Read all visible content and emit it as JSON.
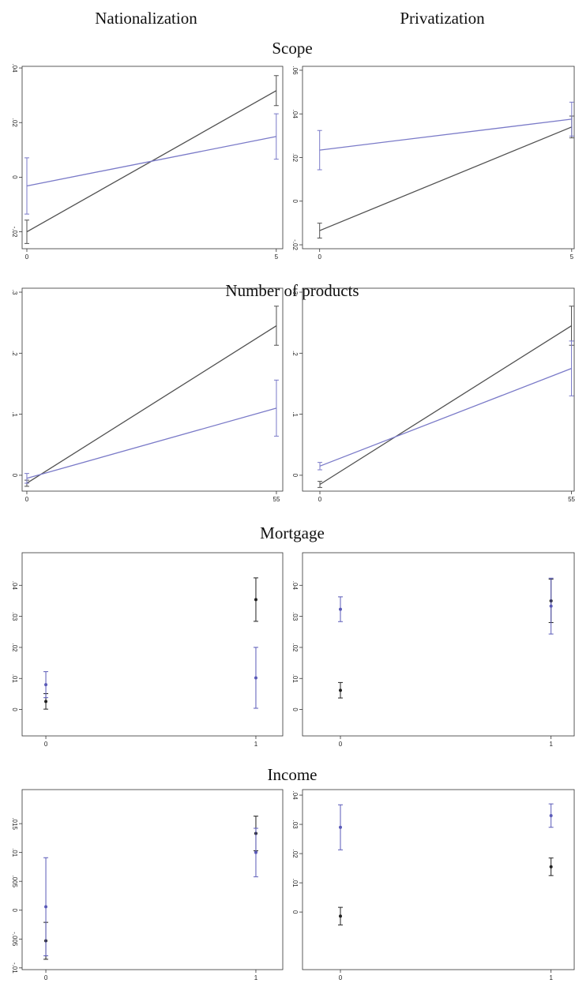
{
  "columns": [
    "Nationalization",
    "Privatization"
  ],
  "rows": [
    "Scope",
    "Number of products",
    "Mortgage",
    "Income"
  ],
  "chart_data": [
    {
      "type": "line",
      "x": [
        0,
        5
      ],
      "xlim": [
        -0.095,
        5.13
      ],
      "xticks": [
        0,
        5
      ],
      "ylim": [
        -0.0262,
        0.0406
      ],
      "yticks": [
        {
          "value": -0.02,
          "label": "-.02"
        },
        0,
        {
          "value": 0.02,
          "label": ".02"
        },
        {
          "value": 0.04,
          "label": ".04"
        }
      ],
      "series": [
        {
          "color": "#505050",
          "values": [
            -0.02,
            0.0317
          ],
          "errors": [
            0.0043,
            0.0055
          ]
        },
        {
          "color": "#7a7ac8",
          "values": [
            -0.0032,
            0.0149
          ],
          "errors": [
            0.0103,
            0.0083
          ]
        }
      ]
    },
    {
      "type": "line",
      "x": [
        0,
        5
      ],
      "xlim": [
        -0.34,
        5.05
      ],
      "xticks": [
        0,
        5
      ],
      "ylim": [
        -0.0218,
        0.0618
      ],
      "yticks": [
        {
          "value": -0.02,
          "label": "-.02"
        },
        0,
        {
          "value": 0.02,
          "label": ".02"
        },
        {
          "value": 0.04,
          "label": ".04"
        },
        {
          "value": 0.06,
          "label": ".06"
        }
      ],
      "series": [
        {
          "color": "#505050",
          "values": [
            -0.0135,
            0.034
          ],
          "errors": [
            0.0034,
            0.005
          ]
        },
        {
          "color": "#7a7ac8",
          "values": [
            0.0234,
            0.0376
          ],
          "errors": [
            0.009,
            0.0078
          ]
        }
      ]
    },
    {
      "type": "line",
      "x": [
        0,
        55
      ],
      "xlim": [
        -1.04,
        56.4
      ],
      "xticks": [
        0,
        55
      ],
      "ylim": [
        -0.026,
        0.3065
      ],
      "yticks": [
        0,
        {
          "value": 0.1,
          "label": ".1"
        },
        {
          "value": 0.2,
          "label": ".2"
        },
        {
          "value": 0.3,
          "label": ".3"
        }
      ],
      "series": [
        {
          "color": "#505050",
          "values": [
            -0.013,
            0.245
          ],
          "errors": [
            0.005,
            0.032
          ]
        },
        {
          "color": "#7a7ac8",
          "values": [
            -0.005,
            0.11
          ],
          "errors": [
            0.008,
            0.046
          ]
        }
      ]
    },
    {
      "type": "line",
      "x": [
        0,
        55
      ],
      "xlim": [
        -3.8,
        55.6
      ],
      "xticks": [
        0,
        55
      ],
      "ylim": [
        -0.026,
        0.3065
      ],
      "yticks": [
        0,
        {
          "value": 0.1,
          "label": ".1"
        },
        {
          "value": 0.2,
          "label": ".2"
        },
        {
          "value": 0.3,
          "label": ".3"
        }
      ],
      "series": [
        {
          "color": "#505050",
          "values": [
            -0.015,
            0.245
          ],
          "errors": [
            0.005,
            0.032
          ]
        },
        {
          "color": "#7a7ac8",
          "values": [
            0.015,
            0.175
          ],
          "errors": [
            0.006,
            0.045
          ]
        }
      ]
    },
    {
      "type": "scatter",
      "x": [
        0,
        1
      ],
      "xlim": [
        -0.113,
        1.128
      ],
      "xticks": [
        0,
        1
      ],
      "ylim": [
        -0.0085,
        0.0505
      ],
      "yticks": [
        0,
        {
          "value": 0.01,
          "label": ".01"
        },
        {
          "value": 0.02,
          "label": ".02"
        },
        {
          "value": 0.03,
          "label": ".03"
        },
        {
          "value": 0.04,
          "label": ".04"
        }
      ],
      "series": [
        {
          "color": "#202020",
          "values": [
            0.0026,
            0.0354
          ],
          "errors": [
            0.0025,
            0.007
          ]
        },
        {
          "color": "#5a5ab8",
          "values": [
            0.008,
            0.0102
          ],
          "errors": [
            0.0042,
            0.0098
          ]
        }
      ]
    },
    {
      "type": "scatter",
      "x": [
        0,
        1
      ],
      "xlim": [
        -0.18,
        1.11
      ],
      "xticks": [
        0,
        1
      ],
      "ylim": [
        -0.0085,
        0.0505
      ],
      "yticks": [
        0,
        {
          "value": 0.01,
          "label": ".01"
        },
        {
          "value": 0.02,
          "label": ".02"
        },
        {
          "value": 0.03,
          "label": ".03"
        },
        {
          "value": 0.04,
          "label": ".04"
        }
      ],
      "series": [
        {
          "color": "#202020",
          "values": [
            0.0062,
            0.035
          ],
          "errors": [
            0.0025,
            0.007
          ]
        },
        {
          "color": "#5a5ab8",
          "values": [
            0.0323,
            0.0333
          ],
          "errors": [
            0.004,
            0.009
          ]
        }
      ]
    },
    {
      "type": "scatter",
      "x": [
        0,
        1
      ],
      "xlim": [
        -0.113,
        1.128
      ],
      "xticks": [
        0,
        1
      ],
      "ylim": [
        -0.0103,
        0.0209
      ],
      "yticks": [
        {
          "value": -0.01,
          "label": "-.01"
        },
        {
          "value": -0.005,
          "label": "-.005"
        },
        0,
        {
          "value": 0.005,
          "label": ".005"
        },
        {
          "value": 0.01,
          "label": ".01"
        },
        {
          "value": 0.015,
          "label": ".015"
        }
      ],
      "series": [
        {
          "color": "#202020",
          "values": [
            -0.0053,
            0.0133
          ],
          "errors": [
            0.0032,
            0.003
          ]
        },
        {
          "color": "#5a5ab8",
          "values": [
            0.0006,
            0.01
          ],
          "errors": [
            0.0085,
            0.0042
          ]
        }
      ]
    },
    {
      "type": "scatter",
      "x": [
        0,
        1
      ],
      "xlim": [
        -0.18,
        1.11
      ],
      "xticks": [
        0,
        1
      ],
      "ylim": [
        -0.0197,
        0.0419
      ],
      "yticks": [
        0,
        {
          "value": 0.01,
          "label": ".01"
        },
        {
          "value": 0.02,
          "label": ".02"
        },
        {
          "value": 0.03,
          "label": ".03"
        },
        {
          "value": 0.04,
          "label": ".04"
        }
      ],
      "series": [
        {
          "color": "#202020",
          "values": [
            -0.0014,
            0.0155
          ],
          "errors": [
            0.003,
            0.003
          ]
        },
        {
          "color": "#5a5ab8",
          "values": [
            0.029,
            0.033
          ],
          "errors": [
            0.0077,
            0.004
          ]
        }
      ]
    }
  ]
}
